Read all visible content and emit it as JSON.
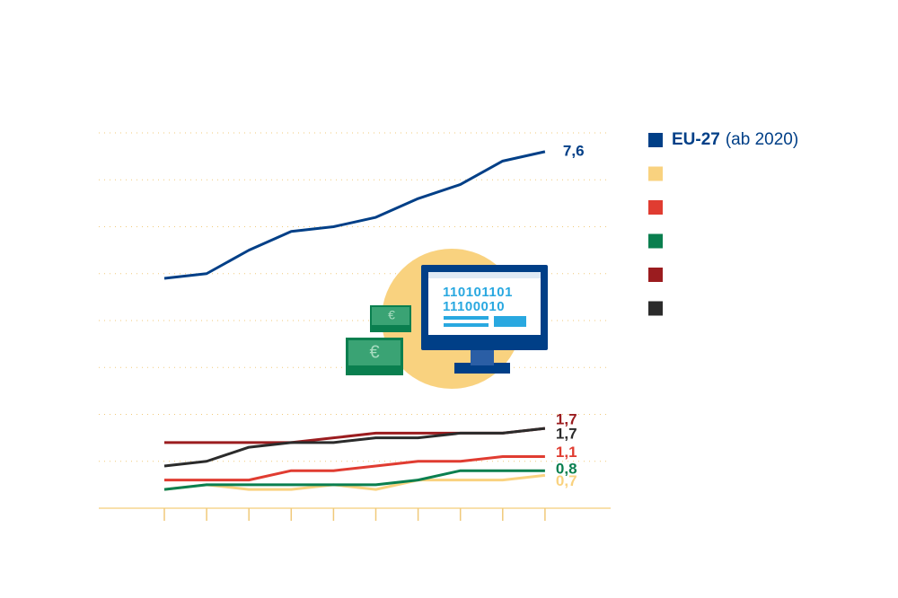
{
  "chart_data": {
    "type": "line",
    "categories": [
      null,
      null,
      null,
      null,
      null,
      null,
      null,
      null,
      null,
      null
    ],
    "ylim": [
      0,
      8
    ],
    "yticks": [
      0,
      1,
      2,
      3,
      4,
      5,
      6,
      7,
      8
    ],
    "grid": true,
    "legend_note": "(ab 2020)",
    "legend": "right",
    "series": [
      {
        "name": "EU-27",
        "color": "#003f87",
        "values": [
          4.9,
          5.0,
          5.5,
          5.9,
          6.0,
          6.2,
          6.6,
          6.9,
          7.4,
          7.6
        ],
        "value_labels": [
          null,
          null,
          null,
          null,
          null,
          null,
          null,
          null,
          null,
          "7,6"
        ]
      },
      {
        "name": null,
        "color": "#f9d27f",
        "values": [
          0.4,
          0.5,
          0.4,
          0.4,
          0.5,
          0.4,
          0.6,
          0.6,
          0.6,
          0.7
        ],
        "value_labels": [
          null,
          null,
          null,
          null,
          null,
          null,
          null,
          null,
          null,
          "0,7"
        ]
      },
      {
        "name": null,
        "color": "#e03c31",
        "values": [
          0.6,
          0.6,
          0.6,
          0.8,
          0.8,
          0.9,
          1.0,
          1.0,
          1.1,
          1.1
        ],
        "value_labels": [
          null,
          null,
          null,
          null,
          null,
          null,
          null,
          null,
          null,
          "1,1"
        ]
      },
      {
        "name": null,
        "color": "#0a7f4f",
        "values": [
          0.4,
          0.5,
          0.5,
          0.5,
          0.5,
          0.5,
          0.6,
          0.8,
          0.8,
          0.8
        ],
        "value_labels": [
          null,
          null,
          null,
          null,
          null,
          null,
          null,
          null,
          null,
          "0,8"
        ]
      },
      {
        "name": null,
        "color": "#9b1c1f",
        "values": [
          1.4,
          1.4,
          1.4,
          1.4,
          1.5,
          1.6,
          1.6,
          1.6,
          1.6,
          1.7
        ],
        "value_labels": [
          null,
          null,
          null,
          null,
          null,
          null,
          null,
          null,
          null,
          "1,7"
        ]
      },
      {
        "name": null,
        "color": "#2b2b2b",
        "values": [
          0.9,
          1.0,
          1.3,
          1.4,
          1.4,
          1.5,
          1.5,
          1.6,
          1.6,
          1.7
        ],
        "value_labels": [
          null,
          null,
          null,
          null,
          null,
          null,
          null,
          null,
          null,
          "1,7"
        ]
      }
    ]
  },
  "illustration": {
    "lines": [
      "110101101",
      "11100010"
    ]
  }
}
